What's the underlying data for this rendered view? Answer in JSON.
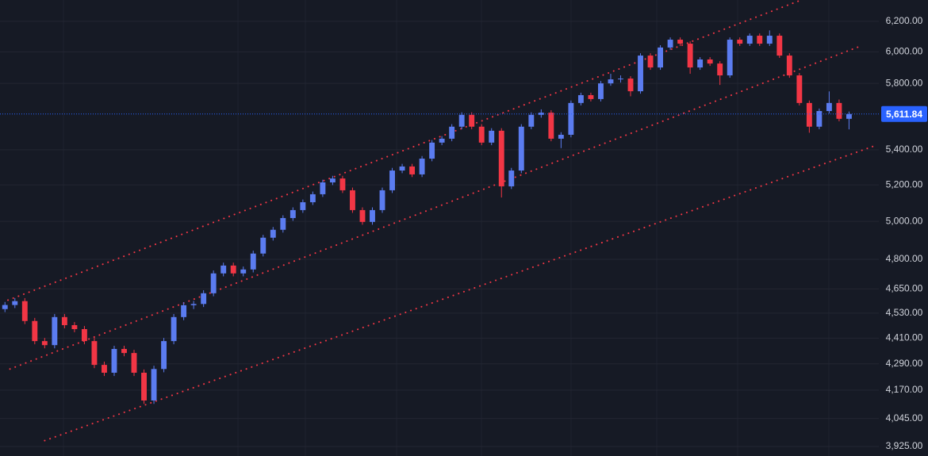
{
  "chart_data": {
    "type": "candlestick",
    "log_scale": true,
    "grid": true,
    "up_color": "#5b7cf0",
    "down_color": "#f23645",
    "xlim": [
      -0.5,
      88
    ],
    "ylim": [
      3885,
      6344
    ],
    "yticks": [
      {
        "value": 3925,
        "label": "3,925.00"
      },
      {
        "value": 4045,
        "label": "4,045.00"
      },
      {
        "value": 4170,
        "label": "4,170.00"
      },
      {
        "value": 4290,
        "label": "4,290.00"
      },
      {
        "value": 4410,
        "label": "4,410.00"
      },
      {
        "value": 4530,
        "label": "4,530.00"
      },
      {
        "value": 4650,
        "label": "4,650.00"
      },
      {
        "value": 4800,
        "label": "4,800.00"
      },
      {
        "value": 5000,
        "label": "5,000.00"
      },
      {
        "value": 5200,
        "label": "5,200.00"
      },
      {
        "value": 5400,
        "label": "5,400.00"
      },
      {
        "value": 5800,
        "label": "5,800.00"
      },
      {
        "value": 6000,
        "label": "6,000.00"
      },
      {
        "value": 6200,
        "label": "6,200.00"
      }
    ],
    "last_price": {
      "value": 5611.84,
      "label": "5,611.84",
      "color": "#2962ff"
    },
    "ohlc": [
      [
        4550,
        4585,
        4535,
        4570
      ],
      [
        4570,
        4604,
        4555,
        4589
      ],
      [
        4589,
        4604,
        4477,
        4492
      ],
      [
        4492,
        4507,
        4381,
        4396
      ],
      [
        4396,
        4411,
        4362,
        4377
      ],
      [
        4377,
        4526,
        4362,
        4511
      ],
      [
        4511,
        4526,
        4457,
        4472
      ],
      [
        4472,
        4487,
        4438,
        4453
      ],
      [
        4453,
        4468,
        4381,
        4396
      ],
      [
        4396,
        4411,
        4270,
        4285
      ],
      [
        4285,
        4300,
        4234,
        4249
      ],
      [
        4249,
        4374,
        4234,
        4359
      ],
      [
        4359,
        4374,
        4325,
        4340
      ],
      [
        4340,
        4355,
        4234,
        4249
      ],
      [
        4249,
        4264,
        4109,
        4124
      ],
      [
        4124,
        4281,
        4109,
        4266
      ],
      [
        4266,
        4411,
        4251,
        4396
      ],
      [
        4396,
        4526,
        4381,
        4511
      ],
      [
        4511,
        4584,
        4496,
        4569
      ],
      [
        4569,
        4590,
        4550,
        4575
      ],
      [
        4575,
        4643,
        4560,
        4628
      ],
      [
        4628,
        4743,
        4613,
        4728
      ],
      [
        4728,
        4783,
        4713,
        4768
      ],
      [
        4768,
        4783,
        4713,
        4728
      ],
      [
        4728,
        4763,
        4713,
        4748
      ],
      [
        4748,
        4845,
        4733,
        4830
      ],
      [
        4830,
        4928,
        4815,
        4913
      ],
      [
        4913,
        4970,
        4898,
        4955
      ],
      [
        4955,
        5033,
        4940,
        5018
      ],
      [
        5018,
        5076,
        5003,
        5061
      ],
      [
        5061,
        5119,
        5046,
        5104
      ],
      [
        5104,
        5163,
        5089,
        5148
      ],
      [
        5148,
        5229,
        5133,
        5214
      ],
      [
        5214,
        5251,
        5199,
        5236
      ],
      [
        5236,
        5251,
        5155,
        5170
      ],
      [
        5170,
        5185,
        5046,
        5061
      ],
      [
        5061,
        5076,
        4982,
        4997
      ],
      [
        4997,
        5076,
        4982,
        5061
      ],
      [
        5061,
        5185,
        5046,
        5170
      ],
      [
        5170,
        5296,
        5155,
        5281
      ],
      [
        5281,
        5319,
        5266,
        5304
      ],
      [
        5304,
        5319,
        5244,
        5259
      ],
      [
        5259,
        5364,
        5244,
        5349
      ],
      [
        5349,
        5457,
        5334,
        5442
      ],
      [
        5442,
        5480,
        5427,
        5465
      ],
      [
        5465,
        5551,
        5450,
        5536
      ],
      [
        5536,
        5622,
        5521,
        5607
      ],
      [
        5607,
        5622,
        5521,
        5536
      ],
      [
        5536,
        5551,
        5427,
        5442
      ],
      [
        5442,
        5527,
        5427,
        5512
      ],
      [
        5512,
        5527,
        5130,
        5192
      ],
      [
        5192,
        5296,
        5177,
        5281
      ],
      [
        5281,
        5551,
        5266,
        5536
      ],
      [
        5536,
        5622,
        5521,
        5607
      ],
      [
        5607,
        5640,
        5590,
        5620
      ],
      [
        5620,
        5635,
        5450,
        5465
      ],
      [
        5465,
        5503,
        5410,
        5488
      ],
      [
        5488,
        5694,
        5473,
        5679
      ],
      [
        5679,
        5742,
        5664,
        5727
      ],
      [
        5727,
        5742,
        5688,
        5703
      ],
      [
        5703,
        5815,
        5688,
        5800
      ],
      [
        5800,
        5860,
        5785,
        5825
      ],
      [
        5825,
        5850,
        5805,
        5830
      ],
      [
        5830,
        5845,
        5720,
        5751
      ],
      [
        5751,
        5991,
        5736,
        5976
      ],
      [
        5976,
        5991,
        5885,
        5900
      ],
      [
        5900,
        6043,
        5885,
        6028
      ],
      [
        6028,
        6094,
        6013,
        6079
      ],
      [
        6079,
        6094,
        6038,
        6053
      ],
      [
        6053,
        6068,
        5860,
        5900
      ],
      [
        5900,
        5966,
        5885,
        5951
      ],
      [
        5951,
        5966,
        5910,
        5925
      ],
      [
        5925,
        5940,
        5790,
        5850
      ],
      [
        5850,
        6094,
        5835,
        6079
      ],
      [
        6079,
        6094,
        6038,
        6053
      ],
      [
        6053,
        6120,
        6038,
        6105
      ],
      [
        6105,
        6120,
        6038,
        6053
      ],
      [
        6053,
        6140,
        6038,
        6105
      ],
      [
        6105,
        6120,
        5961,
        5976
      ],
      [
        5976,
        5991,
        5835,
        5850
      ],
      [
        5850,
        5865,
        5664,
        5679
      ],
      [
        5679,
        5694,
        5500,
        5536
      ],
      [
        5536,
        5645,
        5521,
        5630
      ],
      [
        5630,
        5750,
        5615,
        5679
      ],
      [
        5679,
        5700,
        5568,
        5583
      ],
      [
        5583,
        5627,
        5520,
        5611.84
      ]
    ],
    "trendlines": [
      {
        "color": "#f23645",
        "x": [
          0.3,
          80.2
        ],
        "values": [
          4594,
          6344
        ]
      },
      {
        "color": "#f23645",
        "x": [
          0.5,
          86.2
        ],
        "values": [
          4266,
          6038
        ]
      },
      {
        "color": "#f23645",
        "x": [
          4,
          87.8
        ],
        "values": [
          3950,
          5428
        ]
      }
    ]
  }
}
